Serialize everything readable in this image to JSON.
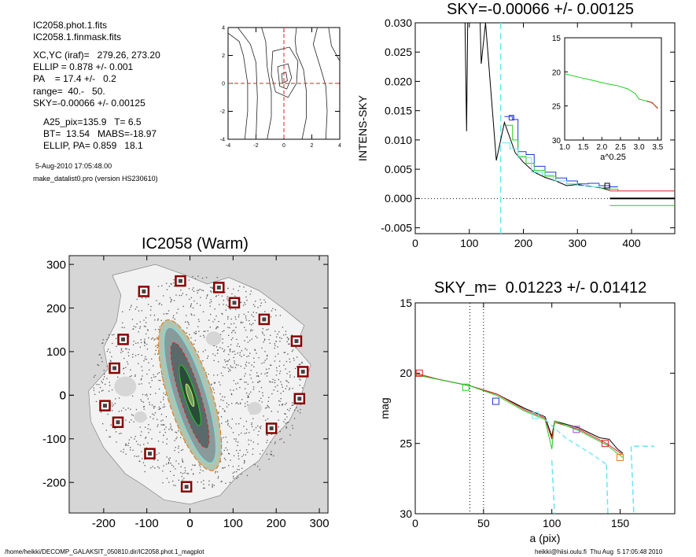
{
  "info": {
    "line1": "IC2058.phot.1.fits",
    "line2": "IC2058.1.finmask.fits",
    "line3": "XC,YC (iraf)=   279.26, 273.20",
    "line4": "ELLIP = 0.878 +/- 0.001",
    "line5": "PA    = 17.4 +/-   0.2",
    "line6": "range=  40.-   50.",
    "line7": "SKY=-0.00066 +/- 0.00125",
    "line8": "A25_pix=135.9   T= 6.5",
    "line9": "BT=  13.54   MABS=-18.97",
    "line10": "ELLIP, PA= 0.859   18.1",
    "date": "5-Aug-2010 17:05:48.00",
    "program": "make_datalist0.pro (version HS230610)"
  },
  "footer": {
    "left": "/home/heikki/DECOMP_GALAKSIT_050810.dir/IC2058.phot.1_magplot",
    "right": "heikki@hiisi.oulu.fi  Thu Aug  5 17:05:48 2010"
  },
  "colors": {
    "black": "#000000",
    "green": "#22cc22",
    "blue": "#2233dd",
    "cyan": "#66e6f0",
    "red": "#dd2222",
    "magenta": "#aa44dd",
    "orange": "#e08020",
    "gray": "#d6d6d6",
    "mask": "#880000"
  },
  "chart_data": [
    {
      "id": "contour",
      "type": "contour",
      "xlim": [
        -4,
        4
      ],
      "ylim": [
        -4,
        4
      ],
      "xticks": [
        "-4",
        "-2",
        "0",
        "2",
        "4"
      ],
      "yticks": [
        "-4",
        "-2",
        "0",
        "2",
        "4"
      ]
    },
    {
      "id": "sky",
      "type": "line",
      "title": "SKY=-0.00066 +/- 0.00125",
      "xlabel": "",
      "ylabel": "INTENS-SKY",
      "xlim": [
        0,
        480
      ],
      "ylim": [
        -0.006,
        0.03
      ],
      "xticks": [
        "0",
        "100",
        "200",
        "300",
        "400"
      ],
      "yticks": [
        "-0.005",
        "0.000",
        "0.005",
        "0.010",
        "0.015",
        "0.020",
        "0.025",
        "0.030"
      ],
      "series": [
        {
          "color": "black",
          "points": [
            [
              92,
              0.03
            ],
            [
              95,
              0.0115
            ],
            [
              97,
              0.03
            ],
            [
              120,
              0.03
            ],
            [
              122,
              0.023
            ],
            [
              130,
              0.03
            ],
            [
              150,
              0.0065
            ],
            [
              165,
              0.013
            ],
            [
              185,
              0.0078
            ],
            [
              200,
              0.0062
            ],
            [
              220,
              0.0045
            ],
            [
              240,
              0.0036
            ],
            [
              260,
              0.003
            ],
            [
              280,
              0.0022
            ],
            [
              300,
              0.0024
            ],
            [
              320,
              0.0021
            ],
            [
              340,
              0.0019
            ],
            [
              360,
              0.0014
            ]
          ]
        },
        {
          "color": "blue",
          "points": [
            [
              165,
              0.014
            ],
            [
              180,
              0.0135
            ],
            [
              190,
              0.008
            ],
            [
              205,
              0.0075
            ],
            [
              220,
              0.0055
            ],
            [
              240,
              0.0045
            ],
            [
              260,
              0.0035
            ],
            [
              280,
              0.003
            ],
            [
              300,
              0.0025
            ],
            [
              320,
              0.0026
            ],
            [
              340,
              0.0022
            ],
            [
              360,
              0.002
            ],
            [
              375,
              0.002
            ]
          ]
        },
        {
          "color": "green",
          "points": [
            [
              165,
              0.0125
            ],
            [
              180,
              0.01
            ],
            [
              190,
              0.0072
            ],
            [
              205,
              0.006
            ],
            [
              220,
              0.0048
            ],
            [
              240,
              0.0038
            ],
            [
              260,
              0.003
            ],
            [
              280,
              0.0025
            ],
            [
              300,
              0.0022
            ],
            [
              320,
              0.002
            ],
            [
              340,
              0.0018
            ],
            [
              360,
              0.0016
            ],
            [
              375,
              0.0013
            ]
          ]
        },
        {
          "color": "cyan",
          "points": [
            [
              160,
              0.0095
            ],
            [
              175,
              0.0085
            ],
            [
              190,
              0.007
            ],
            [
              200,
              0.007
            ],
            [
              215,
              0.0045
            ],
            [
              235,
              0.004
            ],
            [
              255,
              0.003
            ],
            [
              280,
              0.0025
            ],
            [
              300,
              0.0022
            ],
            [
              320,
              0.002
            ],
            [
              340,
              0.0019
            ]
          ]
        },
        {
          "color": "red",
          "points": [
            [
              360,
              0.0013
            ],
            [
              480,
              0.0013
            ]
          ]
        },
        {
          "color": "green",
          "points": [
            [
              360,
              -0.0012
            ],
            [
              480,
              -0.0012
            ]
          ]
        },
        {
          "color": "black",
          "points": [
            [
              360,
              0.0
            ],
            [
              480,
              0.0
            ]
          ]
        }
      ],
      "vline_x": 158,
      "markers": [
        {
          "x": 178,
          "y": 0.0138,
          "color": "blue"
        },
        {
          "x": 355,
          "y": 0.0022,
          "color": "black"
        }
      ],
      "inset": {
        "xlabel": "a^0.25",
        "xlim": [
          1.0,
          3.6
        ],
        "ylim": [
          15,
          30
        ],
        "xticks": [
          "1.0",
          "1.5",
          "2.0",
          "2.5",
          "3.0",
          "3.5"
        ],
        "yticks": [
          "15",
          "20",
          "25",
          "30"
        ],
        "series": [
          {
            "color": "green",
            "points": [
              [
                1.0,
                20.3
              ],
              [
                1.4,
                20.8
              ],
              [
                1.8,
                21.3
              ],
              [
                2.1,
                21.7
              ],
              [
                2.4,
                22.0
              ],
              [
                2.7,
                22.5
              ],
              [
                2.9,
                23.2
              ],
              [
                3.0,
                24.0
              ],
              [
                3.15,
                24.2
              ],
              [
                3.3,
                24.4
              ],
              [
                3.4,
                24.8
              ],
              [
                3.5,
                25.3
              ]
            ]
          },
          {
            "color": "red",
            "points": [
              [
                3.2,
                24.3
              ],
              [
                3.35,
                24.5
              ],
              [
                3.5,
                25.4
              ]
            ]
          }
        ]
      }
    },
    {
      "id": "image",
      "type": "image",
      "title": "IC2058 (Warm)",
      "xlim": [
        -280,
        320
      ],
      "ylim": [
        -270,
        320
      ],
      "xticks": [
        "-200",
        "-100",
        "0",
        "100",
        "200",
        "300"
      ],
      "yticks": [
        "-200",
        "-100",
        "0",
        "100",
        "200",
        "300"
      ],
      "mask_boxes": [
        [
          -22,
          262
        ],
        [
          67,
          247
        ],
        [
          -107,
          238
        ],
        [
          103,
          212
        ],
        [
          172,
          174
        ],
        [
          -155,
          128
        ],
        [
          247,
          124
        ],
        [
          -175,
          62
        ],
        [
          262,
          54
        ],
        [
          254,
          -8
        ],
        [
          -197,
          -24
        ],
        [
          -167,
          -62
        ],
        [
          189,
          -76
        ],
        [
          -93,
          -134
        ],
        [
          -8,
          -210
        ]
      ]
    },
    {
      "id": "mag",
      "type": "line",
      "title": "SKY_m=  0.01223 +/- 0.01412",
      "xlabel": "a (pix)",
      "ylabel": "mag",
      "xlim": [
        0,
        190
      ],
      "ylim": [
        15,
        30
      ],
      "xticks": [
        "0",
        "50",
        "100",
        "150"
      ],
      "yticks": [
        "15",
        "20",
        "25",
        "30"
      ],
      "vlines_dotted": [
        40,
        50
      ],
      "series": [
        {
          "color": "black",
          "points": [
            [
              0,
              20.1
            ],
            [
              20,
              20.5
            ],
            [
              40,
              20.9
            ],
            [
              60,
              21.5
            ],
            [
              80,
              22.5
            ],
            [
              95,
              23.1
            ],
            [
              100,
              24.5
            ],
            [
              102,
              23.4
            ],
            [
              120,
              23.9
            ],
            [
              135,
              24.6
            ],
            [
              142,
              24.7
            ],
            [
              148,
              25.4
            ],
            [
              152,
              25.7
            ]
          ]
        },
        {
          "color": "red",
          "points": [
            [
              0,
              20.0
            ],
            [
              20,
              20.5
            ],
            [
              40,
              20.9
            ],
            [
              60,
              21.5
            ],
            [
              80,
              22.6
            ],
            [
              95,
              23.2
            ],
            [
              100,
              24.7
            ],
            [
              102,
              23.5
            ],
            [
              120,
              24.0
            ],
            [
              140,
              25.0
            ],
            [
              152,
              25.8
            ]
          ]
        },
        {
          "color": "green",
          "points": [
            [
              0,
              20.1
            ],
            [
              20,
              20.5
            ],
            [
              40,
              20.9
            ],
            [
              60,
              21.6
            ],
            [
              80,
              22.7
            ],
            [
              95,
              23.3
            ],
            [
              100,
              25.4
            ],
            [
              102,
              23.4
            ],
            [
              120,
              24.1
            ],
            [
              140,
              25.1
            ],
            [
              152,
              26.0
            ]
          ]
        },
        {
          "color": "cyan",
          "points": [
            [
              95,
              23.3
            ],
            [
              110,
              24.6
            ],
            [
              130,
              25.8
            ],
            [
              140,
              26.5
            ]
          ]
        }
      ],
      "markers": [
        {
          "x": 3,
          "y": 20.0,
          "color": "red"
        },
        {
          "x": 37,
          "y": 21.0,
          "color": "green"
        },
        {
          "x": 59,
          "y": 22.0,
          "color": "blue"
        },
        {
          "x": 88,
          "y": 23.0,
          "color": "cyan"
        },
        {
          "x": 118,
          "y": 24.0,
          "color": "magenta"
        },
        {
          "x": 139,
          "y": 25.0,
          "color": "red"
        },
        {
          "x": 150,
          "y": 26.0,
          "color": "orange"
        }
      ],
      "cyan_steps": [
        [
          100,
          26.2
        ],
        [
          102,
          30
        ],
        [
          140,
          26.5
        ],
        [
          141,
          30
        ],
        [
          158,
          25.2
        ],
        [
          160,
          30
        ],
        [
          160,
          25.2
        ],
        [
          175,
          25.2
        ]
      ]
    }
  ]
}
